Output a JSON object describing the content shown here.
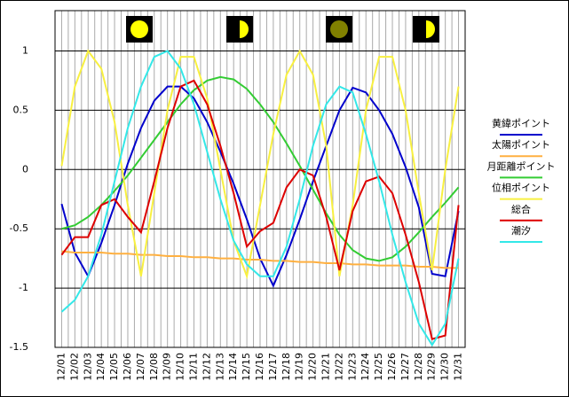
{
  "chart_data": {
    "type": "line",
    "categories": [
      "12/01",
      "12/02",
      "12/03",
      "12/04",
      "12/05",
      "12/06",
      "12/07",
      "12/08",
      "12/09",
      "12/10",
      "12/11",
      "12/12",
      "12/13",
      "12/14",
      "12/15",
      "12/16",
      "12/17",
      "12/18",
      "12/19",
      "12/20",
      "12/21",
      "12/22",
      "12/23",
      "12/24",
      "12/25",
      "12/26",
      "12/27",
      "12/28",
      "12/29",
      "12/30",
      "12/31"
    ],
    "series": [
      {
        "name": "黄緯ポイント",
        "color": "#0000cc",
        "values": [
          -0.29,
          -0.7,
          -0.9,
          -0.62,
          -0.3,
          0.05,
          0.35,
          0.58,
          0.7,
          0.7,
          0.6,
          0.4,
          0.15,
          -0.12,
          -0.42,
          -0.75,
          -0.98,
          -0.72,
          -0.42,
          -0.1,
          0.2,
          0.5,
          0.69,
          0.65,
          0.5,
          0.3,
          0.02,
          -0.32,
          -0.88,
          -0.9,
          -0.35
        ]
      },
      {
        "name": "太陽ポイント",
        "color": "#ffb040",
        "values": [
          -0.69,
          -0.7,
          -0.7,
          -0.7,
          -0.71,
          -0.71,
          -0.72,
          -0.72,
          -0.73,
          -0.73,
          -0.74,
          -0.74,
          -0.75,
          -0.75,
          -0.76,
          -0.76,
          -0.77,
          -0.77,
          -0.78,
          -0.78,
          -0.79,
          -0.79,
          -0.8,
          -0.8,
          -0.81,
          -0.81,
          -0.81,
          -0.82,
          -0.82,
          -0.83,
          -0.83
        ]
      },
      {
        "name": "月距離ポイント",
        "color": "#33cc33",
        "values": [
          -0.5,
          -0.47,
          -0.4,
          -0.3,
          -0.18,
          -0.05,
          0.1,
          0.25,
          0.4,
          0.55,
          0.67,
          0.75,
          0.78,
          0.76,
          0.68,
          0.55,
          0.4,
          0.22,
          0.03,
          -0.17,
          -0.37,
          -0.55,
          -0.68,
          -0.75,
          -0.77,
          -0.74,
          -0.65,
          -0.53,
          -0.4,
          -0.28,
          -0.15
        ]
      },
      {
        "name": "位相ポイント",
        "color": "#f8f040",
        "values": [
          0.03,
          0.7,
          1.0,
          0.85,
          0.4,
          -0.3,
          -0.9,
          -0.2,
          0.5,
          0.95,
          0.95,
          0.6,
          0.0,
          -0.6,
          -0.9,
          -0.3,
          0.3,
          0.8,
          1.0,
          0.8,
          0.2,
          -0.9,
          -0.3,
          0.5,
          0.95,
          0.95,
          0.5,
          -0.2,
          -0.85,
          0.0,
          0.7
        ]
      },
      {
        "name": "総合",
        "color": "#dd0000",
        "values": [
          -0.72,
          -0.57,
          -0.57,
          -0.3,
          -0.25,
          -0.4,
          -0.53,
          -0.1,
          0.35,
          0.7,
          0.75,
          0.55,
          0.2,
          -0.2,
          -0.65,
          -0.52,
          -0.45,
          -0.15,
          0.0,
          -0.05,
          -0.4,
          -0.85,
          -0.35,
          -0.1,
          -0.06,
          -0.2,
          -0.55,
          -0.95,
          -1.43,
          -1.4,
          -0.3
        ]
      },
      {
        "name": "潮汐",
        "color": "#33e8e8",
        "values": [
          -1.2,
          -1.1,
          -0.9,
          -0.55,
          -0.1,
          0.35,
          0.7,
          0.95,
          1.0,
          0.85,
          0.55,
          0.15,
          -0.25,
          -0.6,
          -0.8,
          -0.9,
          -0.9,
          -0.65,
          -0.25,
          0.2,
          0.55,
          0.7,
          0.65,
          0.3,
          -0.1,
          -0.55,
          -0.95,
          -1.3,
          -1.48,
          -1.3,
          -0.75
        ]
      }
    ],
    "ylim": [
      -1.5,
      1.34
    ],
    "yticks": [
      1,
      0.5,
      0,
      -0.5,
      -1,
      -1.5
    ],
    "grid": true
  }
}
